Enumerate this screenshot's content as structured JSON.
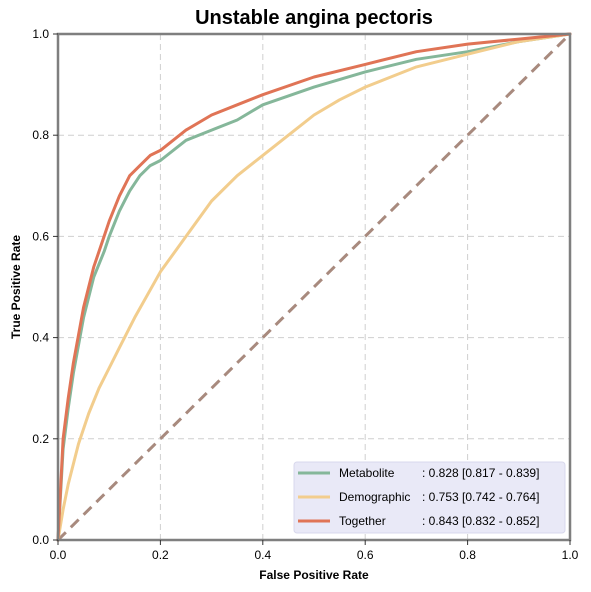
{
  "chart_data": {
    "type": "line",
    "title": "Unstable angina pectoris",
    "xlabel": "False Positive Rate",
    "ylabel": "True Positive Rate",
    "xlim": [
      0,
      1
    ],
    "ylim": [
      0,
      1
    ],
    "grid": true,
    "legend_position": "bottom-right",
    "x_ticks": [
      "0.0",
      "0.2",
      "0.4",
      "0.6",
      "0.8",
      "1.0"
    ],
    "y_ticks": [
      "0.0",
      "0.2",
      "0.4",
      "0.6",
      "0.8",
      "1.0"
    ],
    "diagonal": {
      "color": "#A88A7E",
      "x": [
        0,
        1
      ],
      "y": [
        0,
        1
      ]
    },
    "series": [
      {
        "name": "Metabolite",
        "auc_label": ": 0.828 [0.817 - 0.839]",
        "color": "#85B79A",
        "x": [
          0,
          0.01,
          0.02,
          0.03,
          0.05,
          0.07,
          0.09,
          0.1,
          0.12,
          0.14,
          0.16,
          0.18,
          0.2,
          0.25,
          0.3,
          0.35,
          0.4,
          0.5,
          0.6,
          0.7,
          0.8,
          0.9,
          1.0
        ],
        "y": [
          0,
          0.18,
          0.26,
          0.33,
          0.44,
          0.52,
          0.57,
          0.6,
          0.65,
          0.69,
          0.72,
          0.74,
          0.75,
          0.79,
          0.81,
          0.83,
          0.86,
          0.895,
          0.925,
          0.95,
          0.965,
          0.985,
          1.0
        ]
      },
      {
        "name": "Demographic",
        "auc_label": ": 0.753 [0.742 - 0.764]",
        "color": "#F2CD8D",
        "x": [
          0,
          0.01,
          0.02,
          0.04,
          0.06,
          0.08,
          0.1,
          0.12,
          0.15,
          0.2,
          0.25,
          0.3,
          0.35,
          0.4,
          0.45,
          0.5,
          0.55,
          0.6,
          0.65,
          0.7,
          0.8,
          0.9,
          1.0
        ],
        "y": [
          0,
          0.06,
          0.11,
          0.19,
          0.25,
          0.3,
          0.34,
          0.38,
          0.44,
          0.53,
          0.6,
          0.67,
          0.72,
          0.76,
          0.8,
          0.84,
          0.87,
          0.895,
          0.915,
          0.935,
          0.96,
          0.985,
          1.0
        ]
      },
      {
        "name": "Together",
        "auc_label": ": 0.843 [0.832 - 0.852]",
        "color": "#E07456",
        "x": [
          0,
          0.01,
          0.02,
          0.03,
          0.05,
          0.07,
          0.09,
          0.1,
          0.12,
          0.14,
          0.16,
          0.18,
          0.2,
          0.25,
          0.3,
          0.35,
          0.4,
          0.5,
          0.6,
          0.7,
          0.8,
          0.9,
          1.0
        ],
        "y": [
          0,
          0.2,
          0.28,
          0.35,
          0.46,
          0.54,
          0.6,
          0.63,
          0.68,
          0.72,
          0.74,
          0.76,
          0.77,
          0.81,
          0.84,
          0.86,
          0.88,
          0.915,
          0.94,
          0.965,
          0.98,
          0.99,
          1.0
        ]
      }
    ]
  }
}
